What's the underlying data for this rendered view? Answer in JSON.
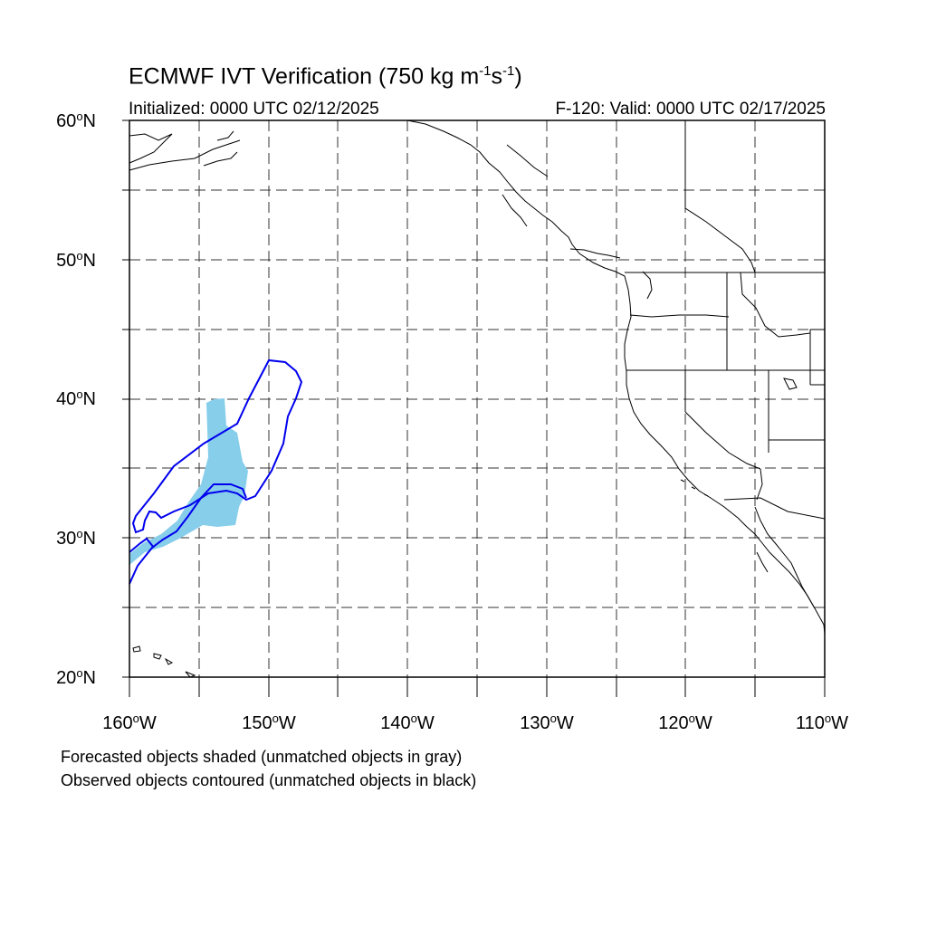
{
  "title": {
    "main": "ECMWF IVT Verification (750 kg m",
    "sup1": "-1",
    "mid": "s",
    "sup2": "-1",
    "end": ")"
  },
  "initialized": "Initialized: 0000 UTC 02/12/2025",
  "valid": "F-120: Valid: 0000 UTC 02/17/2025",
  "map": {
    "lat_range": [
      20,
      60
    ],
    "lon_range": [
      -160,
      -110
    ],
    "grid": "dashed every 5 degrees",
    "lat_labels": [
      {
        "num": "60",
        "deg": "o",
        "dir": "N"
      },
      {
        "num": "50",
        "deg": "o",
        "dir": "N"
      },
      {
        "num": "40",
        "deg": "o",
        "dir": "N"
      },
      {
        "num": "30",
        "deg": "o",
        "dir": "N"
      },
      {
        "num": "20",
        "deg": "o",
        "dir": "N"
      }
    ],
    "lon_labels": [
      {
        "num": "160",
        "deg": "o",
        "dir": "W"
      },
      {
        "num": "150",
        "deg": "o",
        "dir": "W"
      },
      {
        "num": "140",
        "deg": "o",
        "dir": "W"
      },
      {
        "num": "130",
        "deg": "o",
        "dir": "W"
      },
      {
        "num": "120",
        "deg": "o",
        "dir": "W"
      },
      {
        "num": "110",
        "deg": "o",
        "dir": "W"
      }
    ],
    "forecast_object_color": "#87ceeb",
    "observed_contour_color": "#0000ee",
    "coastline_color": "#000000"
  },
  "footnote": {
    "line1": "Forecasted objects shaded (unmatched objects in gray)",
    "line2": "Observed objects contoured (unmatched objects in black)"
  }
}
